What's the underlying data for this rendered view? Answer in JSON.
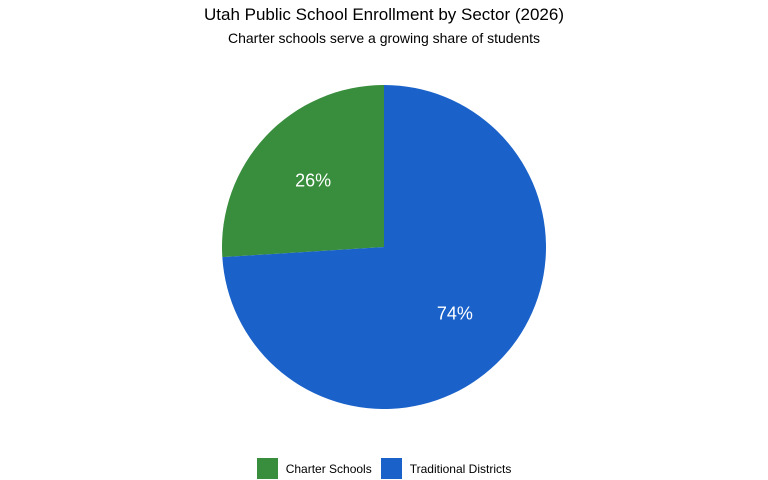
{
  "chart_data": {
    "type": "pie",
    "title": "Utah Public School Enrollment by Sector (2026)",
    "subtitle": "Charter schools serve a growing share of students",
    "slices": [
      {
        "label": "Charter Schools",
        "value": 26,
        "display": "26%",
        "color": "#388e3c"
      },
      {
        "label": "Traditional Districts",
        "value": 74,
        "display": "74%",
        "color": "#1a62c9"
      }
    ],
    "legend_position": "bottom",
    "start_angle": "12 o'clock",
    "direction": "counter-clockwise"
  }
}
